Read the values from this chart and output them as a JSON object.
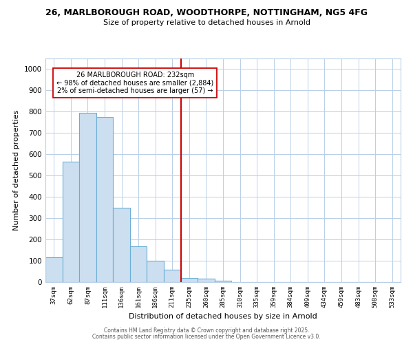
{
  "title": "26, MARLBOROUGH ROAD, WOODTHORPE, NOTTINGHAM, NG5 4FG",
  "subtitle": "Size of property relative to detached houses in Arnold",
  "xlabel": "Distribution of detached houses by size in Arnold",
  "ylabel": "Number of detached properties",
  "bar_labels": [
    "37sqm",
    "62sqm",
    "87sqm",
    "111sqm",
    "136sqm",
    "161sqm",
    "186sqm",
    "211sqm",
    "235sqm",
    "260sqm",
    "285sqm",
    "310sqm",
    "335sqm",
    "359sqm",
    "384sqm",
    "409sqm",
    "434sqm",
    "459sqm",
    "483sqm",
    "508sqm",
    "533sqm"
  ],
  "bar_values": [
    115,
    565,
    795,
    775,
    350,
    168,
    100,
    57,
    20,
    15,
    8,
    0,
    0,
    0,
    0,
    0,
    0,
    0,
    0,
    0,
    0
  ],
  "bar_color": "#ccdff0",
  "bar_edge_color": "#6aaed6",
  "vline_color": "#cc0000",
  "annotation_title": "26 MARLBOROUGH ROAD: 232sqm",
  "annotation_line1": "← 98% of detached houses are smaller (2,884)",
  "annotation_line2": "2% of semi-detached houses are larger (57) →",
  "annotation_box_color": "#ffffff",
  "annotation_box_edge": "#cc0000",
  "ylim": [
    0,
    1050
  ],
  "yticks": [
    0,
    100,
    200,
    300,
    400,
    500,
    600,
    700,
    800,
    900,
    1000
  ],
  "background_color": "#ffffff",
  "grid_color": "#b8cfe8",
  "footer1": "Contains HM Land Registry data © Crown copyright and database right 2025.",
  "footer2": "Contains public sector information licensed under the Open Government Licence v3.0."
}
